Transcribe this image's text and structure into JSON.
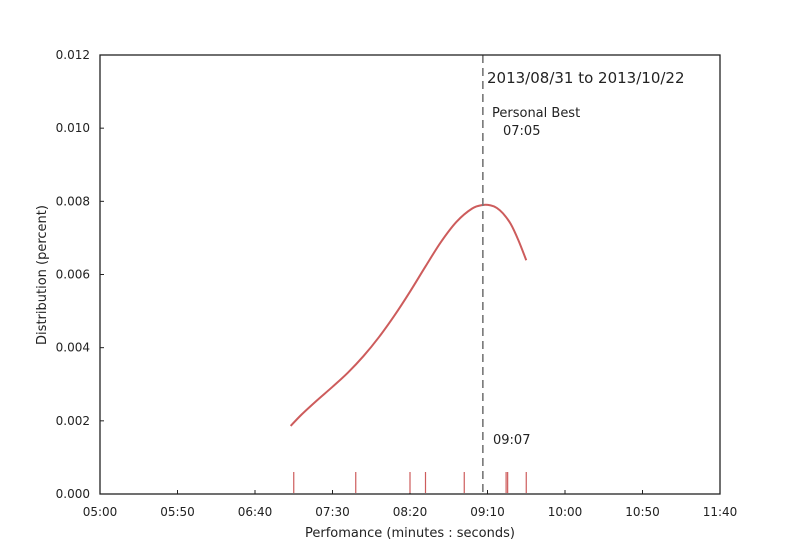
{
  "chart_data": {
    "type": "line",
    "xlabel": "Perfomance (minutes : seconds)",
    "ylabel": "Distribution (percent)",
    "x_unit": "seconds",
    "xlim": [
      300,
      700
    ],
    "ylim": [
      0,
      0.012
    ],
    "x_ticks": [
      {
        "value": 300,
        "label": "05:00"
      },
      {
        "value": 350,
        "label": "05:50"
      },
      {
        "value": 400,
        "label": "06:40"
      },
      {
        "value": 450,
        "label": "07:30"
      },
      {
        "value": 500,
        "label": "08:20"
      },
      {
        "value": 550,
        "label": "09:10"
      },
      {
        "value": 600,
        "label": "10:00"
      },
      {
        "value": 650,
        "label": "10:50"
      },
      {
        "value": 700,
        "label": "11:40"
      }
    ],
    "y_ticks": [
      {
        "value": 0,
        "label": "0.000"
      },
      {
        "value": 0.002,
        "label": "0.002"
      },
      {
        "value": 0.004,
        "label": "0.004"
      },
      {
        "value": 0.006,
        "label": "0.006"
      },
      {
        "value": 0.008,
        "label": "0.008"
      },
      {
        "value": 0.01,
        "label": "0.010"
      },
      {
        "value": 0.012,
        "label": "0.012"
      }
    ],
    "grid": false,
    "series": [
      {
        "color": "#cd5c5c",
        "x": [
          423,
          430,
          440,
          450,
          460,
          470,
          480,
          490,
          500,
          510,
          520,
          530,
          540,
          547,
          552,
          556,
          560,
          565,
          570,
          575
        ],
        "y": [
          0.00186,
          0.00217,
          0.00256,
          0.00293,
          0.00332,
          0.00377,
          0.00429,
          0.00488,
          0.00553,
          0.00622,
          0.00689,
          0.00744,
          0.0078,
          0.0079,
          0.00789,
          0.00782,
          0.00767,
          0.00738,
          0.00693,
          0.00639
        ]
      }
    ],
    "rug": {
      "color": "#cd5c5c",
      "x": [
        425,
        465,
        500,
        510,
        535,
        562,
        563,
        575
      ]
    },
    "vline": {
      "x": 547,
      "style": "dashed",
      "color": "#777777"
    },
    "annotations": {
      "date_range": "2013/08/31 to 2013/10/22",
      "personal_best_label": "Personal Best",
      "personal_best_time": "07:05",
      "vline_label": "09:07"
    }
  }
}
